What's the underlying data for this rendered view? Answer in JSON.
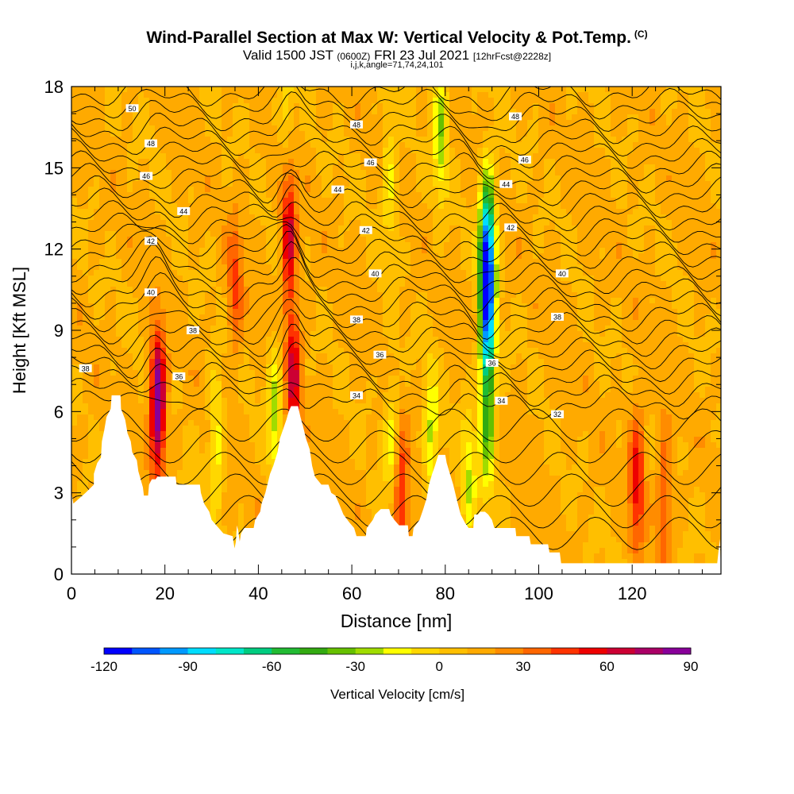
{
  "header": {
    "title": "Wind-Parallel Section at Max W: Vertical Velocity & Pot.Temp.",
    "copyright": "(C)",
    "valid_prefix": "Valid 1500 JST",
    "valid_utc": "(0600Z)",
    "valid_date": "FRI 23 Jul 2021",
    "forecast": "[12hrFcst@2228z]",
    "indices": "i,j,k,angle=71,74,24,101"
  },
  "chart_data": {
    "type": "heatmap",
    "xlabel": "Distance [nm]",
    "ylabel": "Height [Kft MSL]",
    "xlim": [
      0,
      139
    ],
    "ylim": [
      0,
      18
    ],
    "x_ticks": [
      "0",
      "20",
      "40",
      "60",
      "80",
      "100",
      "120"
    ],
    "y_ticks": [
      "0",
      "3",
      "6",
      "9",
      "12",
      "15",
      "18"
    ],
    "colorbar": {
      "label": "Vertical Velocity [cm/s]",
      "min": -120,
      "max": 90,
      "step": 10,
      "tick_labels": [
        "-120",
        "-90",
        "-60",
        "-30",
        "0",
        "30",
        "60",
        "90"
      ],
      "colors": [
        "#0000ff",
        "#0055ff",
        "#0099ff",
        "#00ddff",
        "#00e6c8",
        "#00cc80",
        "#22bb33",
        "#33aa11",
        "#66c000",
        "#a0dc00",
        "#ffff00",
        "#ffd700",
        "#ffbf00",
        "#ffaa00",
        "#ff8c00",
        "#ff6600",
        "#ff3300",
        "#ee0000",
        "#cc0033",
        "#aa0066",
        "#880099"
      ]
    },
    "contour_labels": [
      {
        "text": "50",
        "x": 13,
        "y": 17.2
      },
      {
        "text": "48",
        "x": 17,
        "y": 15.9
      },
      {
        "text": "48",
        "x": 61,
        "y": 16.6
      },
      {
        "text": "48",
        "x": 95,
        "y": 16.9
      },
      {
        "text": "46",
        "x": 16,
        "y": 14.7
      },
      {
        "text": "46",
        "x": 64,
        "y": 15.2
      },
      {
        "text": "46",
        "x": 97,
        "y": 15.3
      },
      {
        "text": "44",
        "x": 24,
        "y": 13.4
      },
      {
        "text": "44",
        "x": 57,
        "y": 14.2
      },
      {
        "text": "44",
        "x": 93,
        "y": 14.4
      },
      {
        "text": "42",
        "x": 17,
        "y": 12.3
      },
      {
        "text": "42",
        "x": 63,
        "y": 12.7
      },
      {
        "text": "42",
        "x": 94,
        "y": 12.8
      },
      {
        "text": "40",
        "x": 17,
        "y": 10.4
      },
      {
        "text": "40",
        "x": 65,
        "y": 11.1
      },
      {
        "text": "40",
        "x": 105,
        "y": 11.1
      },
      {
        "text": "38",
        "x": 26,
        "y": 9.0
      },
      {
        "text": "38",
        "x": 61,
        "y": 9.4
      },
      {
        "text": "38",
        "x": 104,
        "y": 9.5
      },
      {
        "text": "38",
        "x": 3,
        "y": 7.6
      },
      {
        "text": "36",
        "x": 23,
        "y": 7.3
      },
      {
        "text": "36",
        "x": 66,
        "y": 8.1
      },
      {
        "text": "36",
        "x": 90,
        "y": 7.8
      },
      {
        "text": "34",
        "x": 61,
        "y": 6.6
      },
      {
        "text": "34",
        "x": 92,
        "y": 6.4
      },
      {
        "text": "32",
        "x": 104,
        "y": 5.9
      }
    ],
    "vertical_velocity_features": [
      {
        "x": 18.5,
        "y": 6.3,
        "value": 85,
        "sign": "updraft"
      },
      {
        "x": 46.5,
        "y": 12.5,
        "value": 55,
        "sign": "updraft"
      },
      {
        "x": 47.5,
        "y": 7.2,
        "value": 50,
        "sign": "updraft"
      },
      {
        "x": 35,
        "y": 10.5,
        "value": 30,
        "sign": "updraft"
      },
      {
        "x": 121,
        "y": 3.5,
        "value": 45,
        "sign": "updraft"
      },
      {
        "x": 127,
        "y": 3.0,
        "value": 30,
        "sign": "updraft"
      },
      {
        "x": 70.5,
        "y": 2.6,
        "value": 45,
        "sign": "updraft"
      },
      {
        "x": 89,
        "y": 12.0,
        "value": -115,
        "sign": "downdraft"
      },
      {
        "x": 89,
        "y": 9.0,
        "value": -80,
        "sign": "downdraft"
      },
      {
        "x": 89,
        "y": 5.5,
        "value": -45,
        "sign": "downdraft"
      },
      {
        "x": 79,
        "y": 16.5,
        "value": -40,
        "sign": "downdraft"
      },
      {
        "x": 43.5,
        "y": 6.0,
        "value": -35,
        "sign": "downdraft"
      },
      {
        "x": 31,
        "y": 5.0,
        "value": -30,
        "sign": "downdraft"
      },
      {
        "x": 77,
        "y": 5.0,
        "value": -35,
        "sign": "downdraft"
      },
      {
        "x": 68.5,
        "y": 5.0,
        "value": -25,
        "sign": "downdraft"
      },
      {
        "x": 68,
        "y": 14.5,
        "value": -25,
        "sign": "downdraft"
      },
      {
        "x": 46,
        "y": 17.0,
        "value": -20,
        "sign": "downdraft"
      },
      {
        "x": 85,
        "y": 3.5,
        "value": -30,
        "sign": "downdraft"
      }
    ],
    "terrain": [
      [
        0,
        3
      ],
      [
        0.4,
        2.6
      ],
      [
        3,
        3
      ],
      [
        4.8,
        3.3
      ],
      [
        4.8,
        3.7
      ],
      [
        5.5,
        4.1
      ],
      [
        6.3,
        4.3
      ],
      [
        6.5,
        4.9
      ],
      [
        7,
        5.3
      ],
      [
        7.5,
        5.8
      ],
      [
        8.4,
        6.1
      ],
      [
        8.6,
        6.6
      ],
      [
        10.5,
        6.6
      ],
      [
        10.6,
        6.1
      ],
      [
        11.5,
        5.7
      ],
      [
        12,
        5.2
      ],
      [
        12.7,
        4.9
      ],
      [
        13,
        4.5
      ],
      [
        14,
        4.2
      ],
      [
        14.3,
        3.8
      ],
      [
        15.3,
        3.2
      ],
      [
        15.5,
        2.9
      ],
      [
        16.4,
        2.9
      ],
      [
        16.6,
        3.3
      ],
      [
        17.2,
        3.5
      ],
      [
        18,
        3.5
      ],
      [
        18.4,
        3.6
      ],
      [
        22.3,
        3.6
      ],
      [
        22.5,
        3.3
      ],
      [
        27.5,
        3.3
      ],
      [
        27.7,
        3.0
      ],
      [
        28.4,
        2.6
      ],
      [
        29.5,
        2.3
      ],
      [
        30,
        2.0
      ],
      [
        31.5,
        1.7
      ],
      [
        32.5,
        1.5
      ],
      [
        34.5,
        1.4
      ],
      [
        34.9,
        0.95
      ],
      [
        35.2,
        1.2
      ],
      [
        35.4,
        1.8
      ],
      [
        35.7,
        1.6
      ],
      [
        36,
        1.2
      ],
      [
        36.3,
        1.5
      ],
      [
        37,
        1.7
      ],
      [
        39,
        1.7
      ],
      [
        39.3,
        2.0
      ],
      [
        40.4,
        2.3
      ],
      [
        40.7,
        2.6
      ],
      [
        41.5,
        3.0
      ],
      [
        42.5,
        3.7
      ],
      [
        43.2,
        4.0
      ],
      [
        44.1,
        4.5
      ],
      [
        44.6,
        5.0
      ],
      [
        45.2,
        5.3
      ],
      [
        46,
        5.7
      ],
      [
        46.5,
        6.0
      ],
      [
        47,
        6.2
      ],
      [
        48.5,
        6.2
      ],
      [
        49,
        5.8
      ],
      [
        49.5,
        5.5
      ],
      [
        50.2,
        5.0
      ],
      [
        51,
        4.6
      ],
      [
        51.5,
        4.0
      ],
      [
        52.1,
        3.6
      ],
      [
        53.5,
        3.3
      ],
      [
        55,
        3.3
      ],
      [
        55.6,
        3.0
      ],
      [
        56.5,
        2.9
      ],
      [
        57.5,
        2.5
      ],
      [
        58.2,
        2.2
      ],
      [
        59.5,
        1.9
      ],
      [
        60.5,
        1.7
      ],
      [
        61,
        1.4
      ],
      [
        63,
        1.4
      ],
      [
        63.2,
        1.7
      ],
      [
        64.5,
        2.0
      ],
      [
        65,
        2.2
      ],
      [
        66.2,
        2.4
      ],
      [
        68,
        2.4
      ],
      [
        68.3,
        2.2
      ],
      [
        69.1,
        2.0
      ],
      [
        70.1,
        1.8
      ],
      [
        72,
        1.8
      ],
      [
        72.2,
        1.4
      ],
      [
        73,
        1.4
      ],
      [
        73.2,
        1.7
      ],
      [
        74.5,
        2.0
      ],
      [
        75.3,
        2.4
      ],
      [
        76,
        2.8
      ],
      [
        76.5,
        3.3
      ],
      [
        77.2,
        3.7
      ],
      [
        77.8,
        4.0
      ],
      [
        78.5,
        4.4
      ],
      [
        80,
        4.4
      ],
      [
        80.3,
        4.1
      ],
      [
        81,
        3.7
      ],
      [
        81.7,
        3.3
      ],
      [
        82.4,
        2.8
      ],
      [
        83,
        2.4
      ],
      [
        83.3,
        2.2
      ],
      [
        84.2,
        1.9
      ],
      [
        85,
        1.7
      ],
      [
        86,
        1.7
      ],
      [
        86.2,
        2.2
      ],
      [
        87,
        2.2
      ],
      [
        87.5,
        2.3
      ],
      [
        88.5,
        2.3
      ],
      [
        89.2,
        2.2
      ],
      [
        90,
        2.0
      ],
      [
        90.5,
        1.7
      ],
      [
        95,
        1.7
      ],
      [
        95.2,
        1.4
      ],
      [
        98,
        1.4
      ],
      [
        98.3,
        1.1
      ],
      [
        102,
        1.1
      ],
      [
        102.3,
        0.8
      ],
      [
        104.5,
        0.8
      ],
      [
        104.8,
        0.4
      ],
      [
        138.2,
        0.4
      ],
      [
        138.5,
        0.9
      ],
      [
        138.8,
        1.3
      ]
    ]
  }
}
